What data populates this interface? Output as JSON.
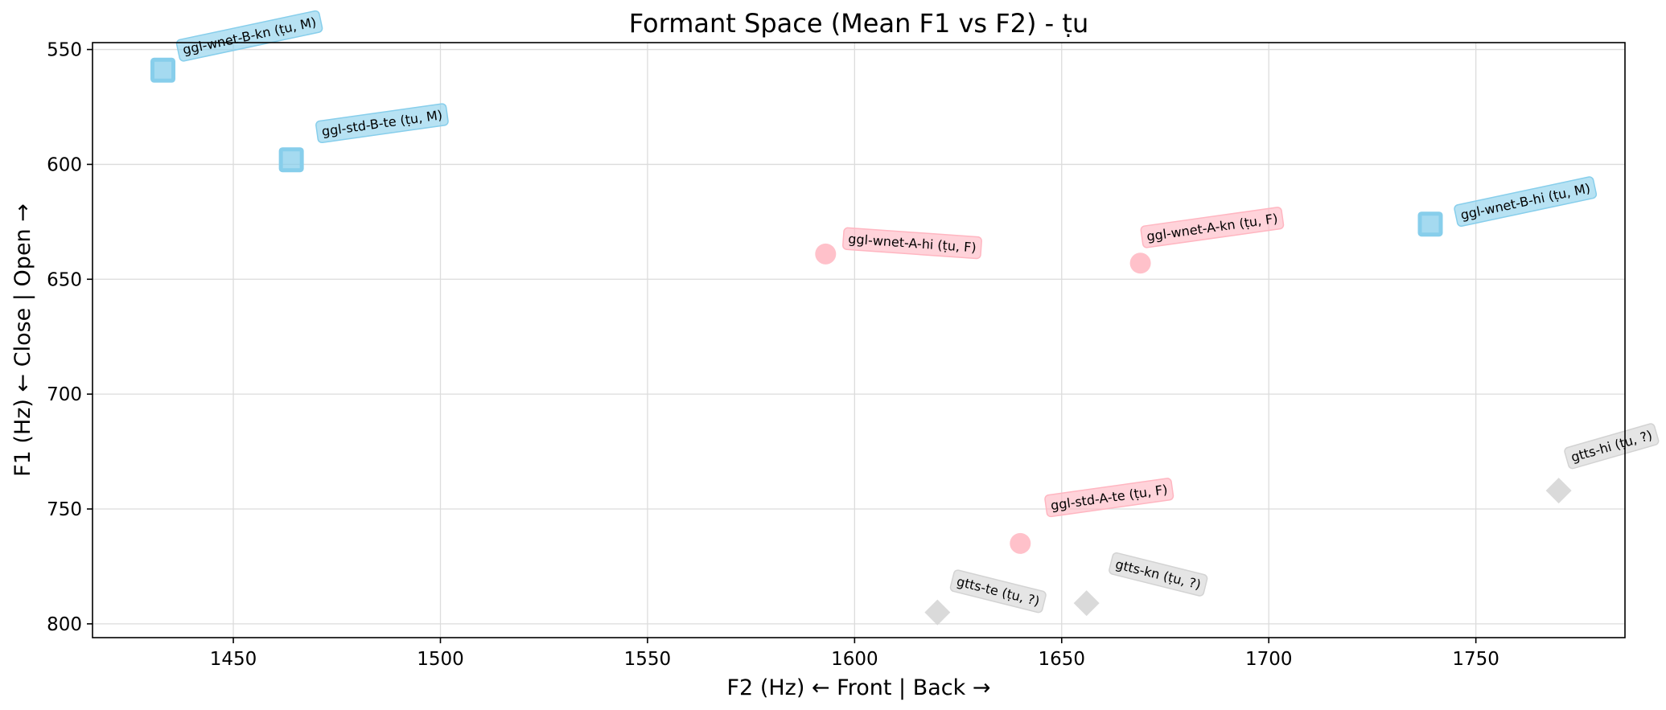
{
  "chart_data": {
    "type": "scatter",
    "title": "Formant Space (Mean F1 vs F2) - ṭu",
    "xlabel": "F2 (Hz) ← Front | Back →",
    "ylabel": "F1 (Hz) ← Close | Open →",
    "xlim": [
      1416,
      1786
    ],
    "ylim": [
      806,
      547
    ],
    "y_inverted": true,
    "grid": true,
    "xticks": [
      1450,
      1500,
      1550,
      1600,
      1650,
      1700,
      1750
    ],
    "yticks": [
      550,
      600,
      650,
      700,
      750,
      800
    ],
    "colors": {
      "M": "#87ceeb",
      "F": "#ffb6c1",
      "?": "#d3d3d3"
    },
    "markers": {
      "M": "square",
      "F": "circle",
      "?": "diamond"
    },
    "points": [
      {
        "label": "ggl-wnet-B-kn (ṭu, M)",
        "x": 1433,
        "y": 559,
        "group": "M"
      },
      {
        "label": "ggl-std-B-te (ṭu, M)",
        "x": 1464,
        "y": 598,
        "group": "M"
      },
      {
        "label": "ggl-wnet-B-hi (ṭu, M)",
        "x": 1739,
        "y": 626,
        "group": "M"
      },
      {
        "label": "ggl-wnet-A-hi (ṭu, F)",
        "x": 1593,
        "y": 639,
        "group": "F"
      },
      {
        "label": "ggl-wnet-A-kn (ṭu, F)",
        "x": 1669,
        "y": 643,
        "group": "F"
      },
      {
        "label": "ggl-std-A-te (ṭu, F)",
        "x": 1640,
        "y": 765,
        "group": "F"
      },
      {
        "label": "gtts-te (ṭu, ?)",
        "x": 1620,
        "y": 795,
        "group": "?"
      },
      {
        "label": "gtts-kn (ṭu, ?)",
        "x": 1656,
        "y": 791,
        "group": "?"
      },
      {
        "label": "gtts-hi (ṭu, ?)",
        "x": 1770,
        "y": 742,
        "group": "?"
      }
    ]
  }
}
